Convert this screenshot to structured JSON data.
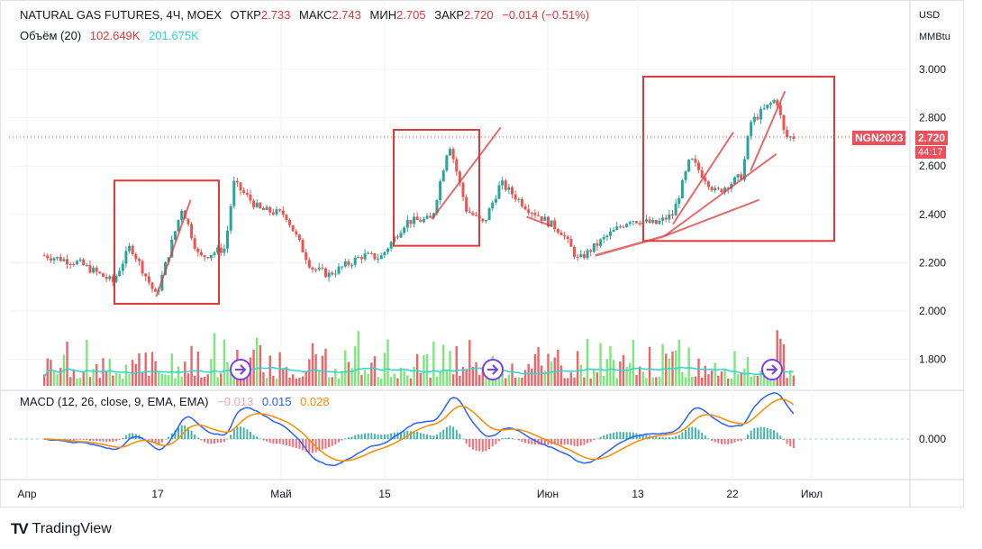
{
  "legend": {
    "symbol": "NATURAL GAS FUTURES, 4Ч, MOEX",
    "open_label": "ОТКР",
    "open": "2.733",
    "high_label": "МАКС",
    "high": "2.743",
    "low_label": "МИН",
    "low": "2.705",
    "close_label": "ЗАКР",
    "close": "2.720",
    "change": "−0.014 (−0.51%)",
    "volume_label": "Объём (20)",
    "volume_value": "102.649K",
    "volume_ma": "201.675K",
    "macd_label": "MACD (12, 26, close, 9, EMA, EMA)",
    "macd_hist": "−0.013",
    "macd_line": "0.015",
    "macd_signal": "0.028"
  },
  "axis": {
    "unit_top": "USD",
    "unit_bottom": "MMBtu",
    "price_ticks": [
      "3.000",
      "2.800",
      "2.600",
      "2.400",
      "2.200",
      "2.000",
      "1.800"
    ],
    "macd_tick": "0.000",
    "time_labels": [
      "Апр",
      "17",
      "Май",
      "15",
      "Июн",
      "13",
      "22",
      "Июл"
    ]
  },
  "price_tag": {
    "symbol": "NGN2023",
    "price": "2.720",
    "countdown": "44:17"
  },
  "brand": {
    "logo": "TV",
    "name": "TradingView"
  },
  "colors": {
    "up": "#089981",
    "down": "#f23645",
    "candle_up": "#26a69a",
    "candle_down": "#ef5350",
    "annotation": "#e0383b",
    "volume_ma": "#2ed6cf",
    "macd": "#2962ff",
    "signal": "#ff8a00"
  },
  "chart_data": {
    "type": "candlestick",
    "price_range": [
      1.7,
      3.1
    ],
    "price_key_points": [
      {
        "date": "Apr 03",
        "price": 2.23
      },
      {
        "date": "Apr 07",
        "price": 2.2
      },
      {
        "date": "Apr 11",
        "price": 2.12
      },
      {
        "date": "Apr 13",
        "price": 2.27
      },
      {
        "date": "Apr 16",
        "price": 2.06
      },
      {
        "date": "Apr 19",
        "price": 2.43
      },
      {
        "date": "Apr 21",
        "price": 2.22
      },
      {
        "date": "Apr 24",
        "price": 2.26
      },
      {
        "date": "Apr 25",
        "price": 2.53
      },
      {
        "date": "Apr 28",
        "price": 2.42
      },
      {
        "date": "May 01",
        "price": 2.4
      },
      {
        "date": "May 04",
        "price": 2.18
      },
      {
        "date": "May 06",
        "price": 2.15
      },
      {
        "date": "May 10",
        "price": 2.23
      },
      {
        "date": "May 12",
        "price": 2.22
      },
      {
        "date": "May 15",
        "price": 2.37
      },
      {
        "date": "May 18",
        "price": 2.38
      },
      {
        "date": "May 20",
        "price": 2.7
      },
      {
        "date": "May 22",
        "price": 2.42
      },
      {
        "date": "May 24",
        "price": 2.36
      },
      {
        "date": "May 26",
        "price": 2.53
      },
      {
        "date": "May 29",
        "price": 2.43
      },
      {
        "date": "Jun 02",
        "price": 2.33
      },
      {
        "date": "Jun 04",
        "price": 2.21
      },
      {
        "date": "Jun 07",
        "price": 2.3
      },
      {
        "date": "Jun 10",
        "price": 2.38
      },
      {
        "date": "Jun 13",
        "price": 2.36
      },
      {
        "date": "Jun 15",
        "price": 2.4
      },
      {
        "date": "Jun 17",
        "price": 2.63
      },
      {
        "date": "Jun 20",
        "price": 2.49
      },
      {
        "date": "Jun 23",
        "price": 2.56
      },
      {
        "date": "Jun 24",
        "price": 2.78
      },
      {
        "date": "Jun 27",
        "price": 2.88
      },
      {
        "date": "Jun 28",
        "price": 2.72
      },
      {
        "date": "Jun 29",
        "price": 2.72
      }
    ],
    "last_price": 2.72
  }
}
